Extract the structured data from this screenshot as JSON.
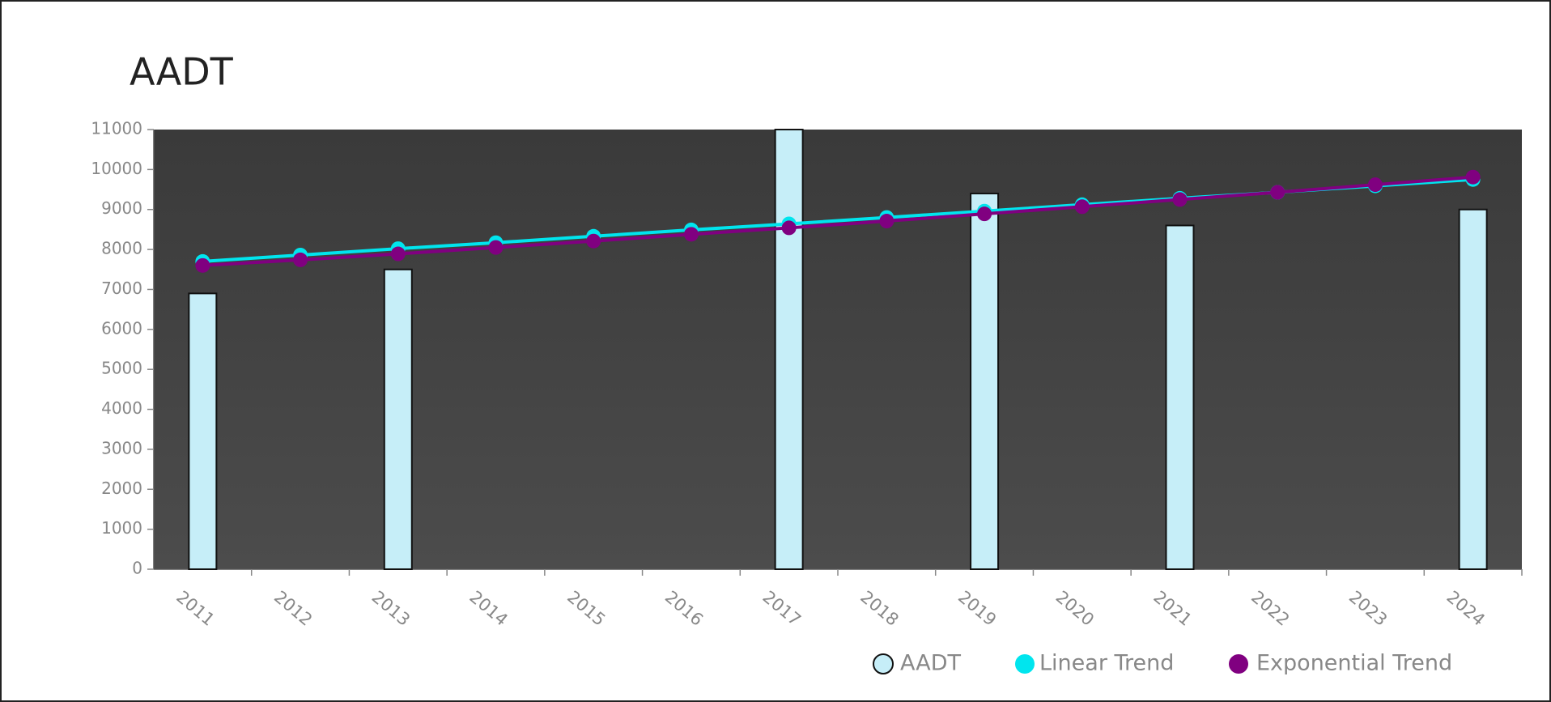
{
  "chart_data": {
    "type": "bar",
    "title": "AADT",
    "categories": [
      "2011",
      "2012",
      "2013",
      "2014",
      "2015",
      "2016",
      "2017",
      "2018",
      "2019",
      "2020",
      "2021",
      "2022",
      "2023",
      "2024"
    ],
    "series": [
      {
        "name": "AADT",
        "type": "bar",
        "color": "#c6eef8",
        "values": [
          6900,
          null,
          7500,
          null,
          null,
          null,
          11000,
          null,
          9400,
          null,
          8600,
          null,
          null,
          9000
        ]
      },
      {
        "name": "Linear Trend",
        "type": "line",
        "color": "#00e5ee",
        "values": [
          7700,
          7860,
          8020,
          8170,
          8330,
          8490,
          8640,
          8800,
          8960,
          9120,
          9280,
          9430,
          9590,
          9750
        ]
      },
      {
        "name": "Exponential Trend",
        "type": "line",
        "color": "#800080",
        "values": [
          7600,
          7740,
          7890,
          8050,
          8210,
          8380,
          8540,
          8710,
          8890,
          9070,
          9250,
          9430,
          9620,
          9810
        ]
      }
    ],
    "ylim": [
      0,
      11000
    ],
    "yticks": [
      0,
      1000,
      2000,
      3000,
      4000,
      5000,
      6000,
      7000,
      8000,
      9000,
      10000,
      11000
    ],
    "legend": "bottom-right"
  }
}
